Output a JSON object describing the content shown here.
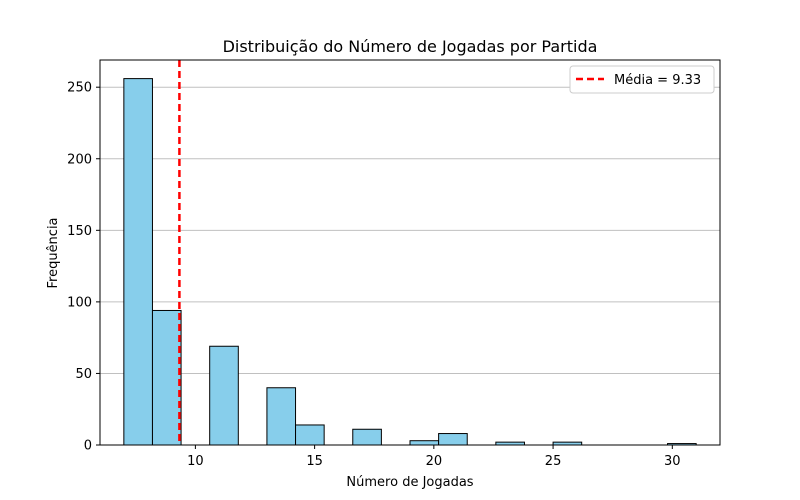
{
  "chart_data": {
    "type": "bar",
    "title": "Distribuição do Número de Jogadas por Partida",
    "xlabel": "Número de Jogadas",
    "ylabel": "Frequência",
    "xlim": [
      6,
      32
    ],
    "ylim": [
      0,
      269
    ],
    "x_ticks": [
      10,
      15,
      20,
      25,
      30
    ],
    "y_ticks": [
      0,
      50,
      100,
      150,
      200,
      250
    ],
    "bins": [
      {
        "x0": 7.0,
        "x1": 8.2,
        "count": 256
      },
      {
        "x0": 8.2,
        "x1": 9.4,
        "count": 94
      },
      {
        "x0": 9.4,
        "x1": 10.6,
        "count": 0
      },
      {
        "x0": 10.6,
        "x1": 11.8,
        "count": 69
      },
      {
        "x0": 11.8,
        "x1": 13.0,
        "count": 0
      },
      {
        "x0": 13.0,
        "x1": 14.2,
        "count": 40
      },
      {
        "x0": 14.2,
        "x1": 15.4,
        "count": 14
      },
      {
        "x0": 15.4,
        "x1": 16.6,
        "count": 0
      },
      {
        "x0": 16.6,
        "x1": 17.8,
        "count": 11
      },
      {
        "x0": 17.8,
        "x1": 19.0,
        "count": 0
      },
      {
        "x0": 19.0,
        "x1": 20.2,
        "count": 3
      },
      {
        "x0": 20.2,
        "x1": 21.4,
        "count": 8
      },
      {
        "x0": 21.4,
        "x1": 22.6,
        "count": 0
      },
      {
        "x0": 22.6,
        "x1": 23.8,
        "count": 2
      },
      {
        "x0": 23.8,
        "x1": 25.0,
        "count": 0
      },
      {
        "x0": 25.0,
        "x1": 26.2,
        "count": 2
      },
      {
        "x0": 26.2,
        "x1": 27.4,
        "count": 0
      },
      {
        "x0": 27.4,
        "x1": 28.6,
        "count": 0
      },
      {
        "x0": 28.6,
        "x1": 29.8,
        "count": 0
      },
      {
        "x0": 29.8,
        "x1": 31.0,
        "count": 1
      }
    ],
    "mean": 9.33,
    "legend": {
      "placement": "top-right",
      "label": "Média = 9.33"
    },
    "grid": {
      "y": true,
      "x": false
    },
    "colors": {
      "bar_fill": "#87ceeb",
      "bar_edge": "#000000",
      "mean_line": "#ff0000",
      "grid": "#c0c0c0"
    }
  }
}
